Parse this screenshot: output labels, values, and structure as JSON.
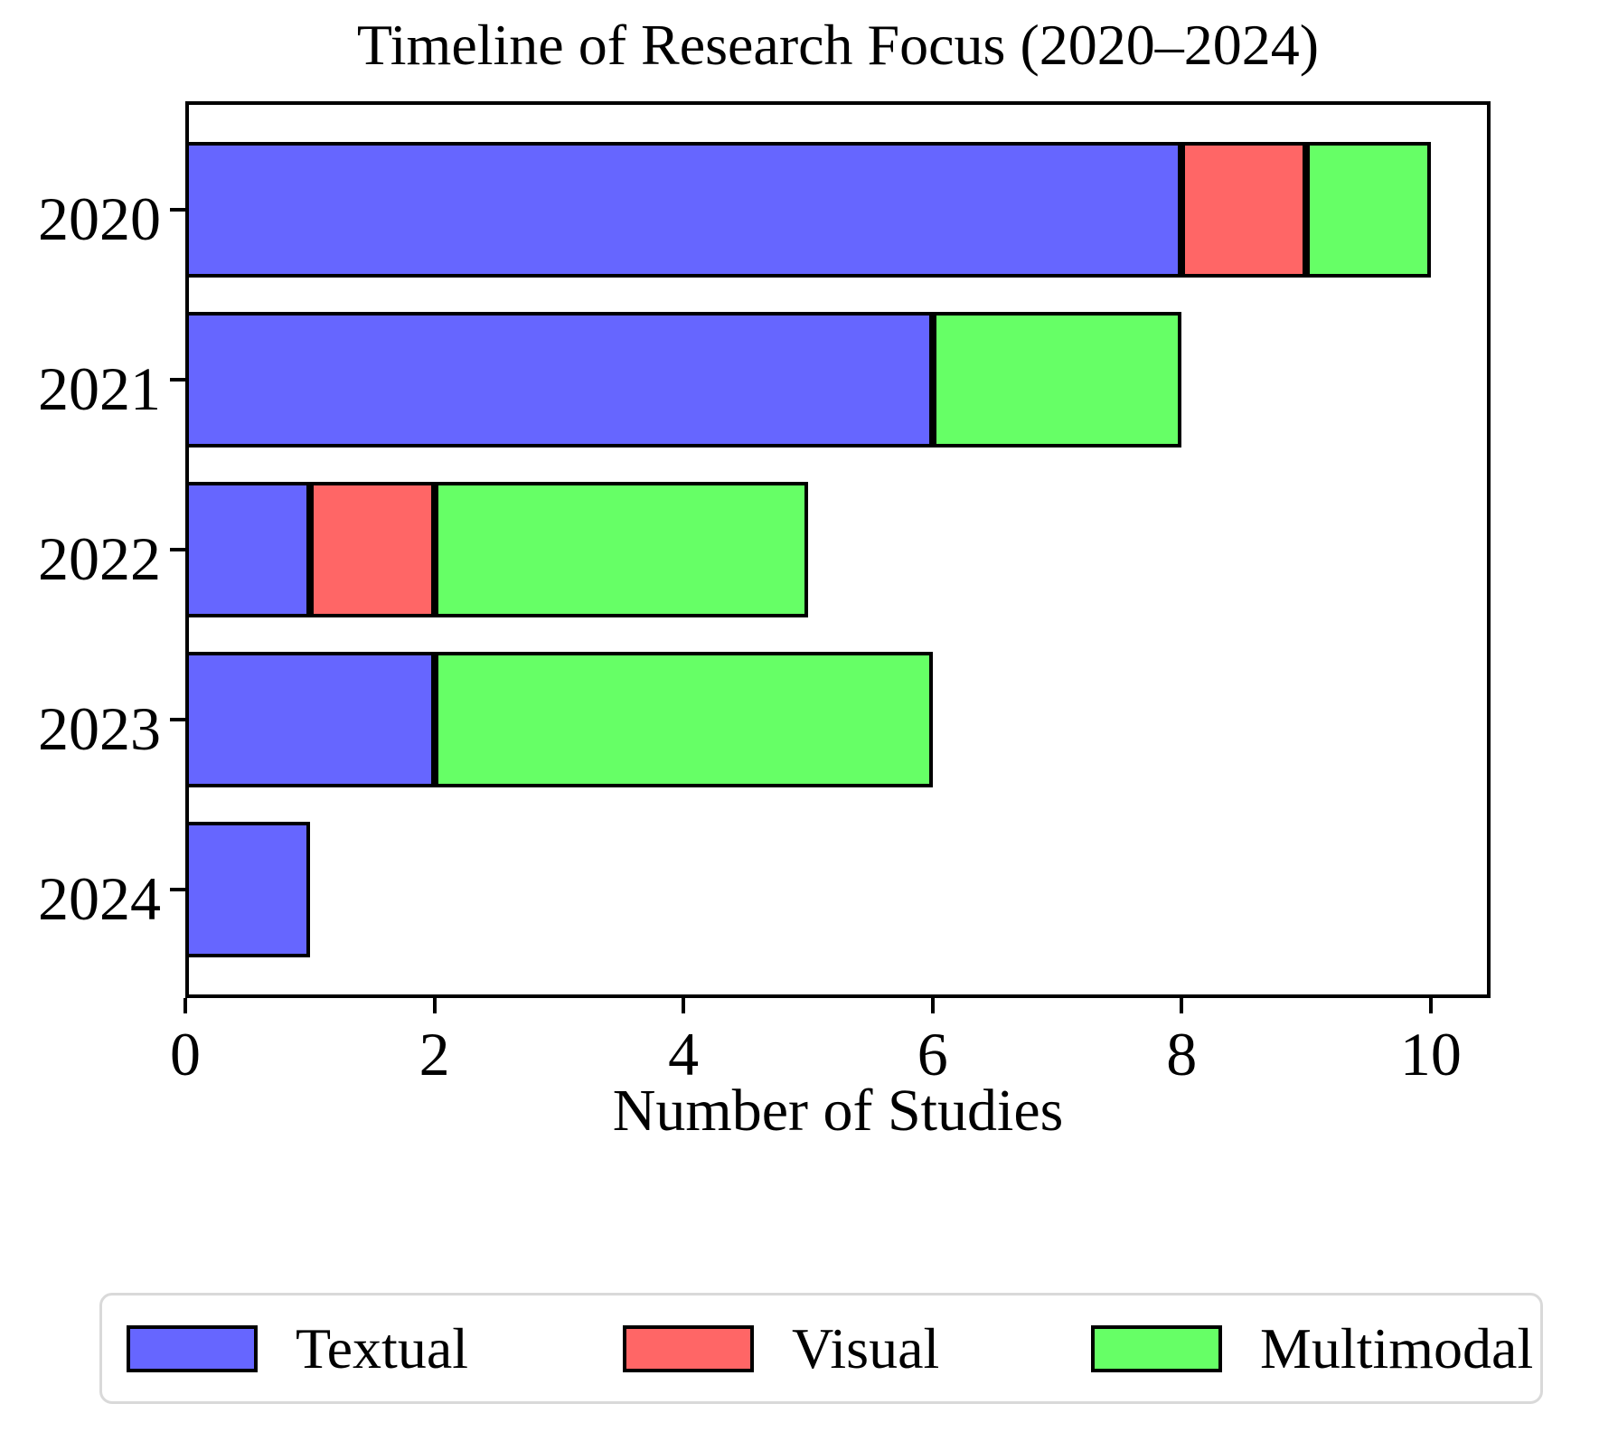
{
  "figure": {
    "background": "#ffffff",
    "text_color": "#000000",
    "axis_color": "#000000",
    "legend_border_color": "#d9d9d9"
  },
  "chart_data": {
    "type": "bar",
    "orientation": "horizontal",
    "stacked": true,
    "title": "Timeline of Research Focus (2020–2024)",
    "xlabel": "Number of Studies",
    "ylabel": "",
    "categories": [
      "2020",
      "2021",
      "2022",
      "2023",
      "2024"
    ],
    "series": [
      {
        "name": "Textual",
        "color": "#6666FF",
        "values": [
          8,
          6,
          1,
          2,
          1
        ]
      },
      {
        "name": "Visual",
        "color": "#FF6666",
        "values": [
          1,
          0,
          1,
          0,
          0
        ]
      },
      {
        "name": "Multimodal",
        "color": "#66FF66",
        "values": [
          1,
          2,
          3,
          4,
          0
        ]
      }
    ],
    "totals": [
      10,
      8,
      5,
      6,
      1
    ],
    "xlim": [
      0,
      10.48
    ],
    "xticks": [
      0,
      2,
      4,
      6,
      8,
      10
    ],
    "grid": false,
    "bar_edge_color": "#000000",
    "legend_position": "bottom",
    "legend_labels": [
      "Textual",
      "Visual",
      "Multimodal"
    ]
  }
}
